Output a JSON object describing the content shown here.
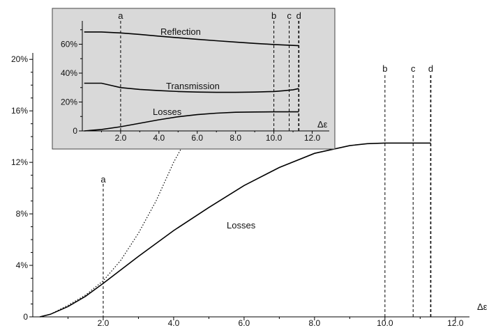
{
  "chart_data": [
    {
      "type": "line",
      "xlabel": "Δε",
      "x_ticks": [
        "2.0",
        "4.0",
        "6.0",
        "8.0",
        "10.0",
        "12.0"
      ],
      "y_ticks": [
        "0",
        "4%",
        "8%",
        "12%",
        "16%",
        "20%"
      ],
      "xlim": [
        0,
        12.4
      ],
      "ylim": [
        0,
        20.5
      ],
      "series": [
        {
          "name": "Losses",
          "x": [
            0.2,
            0.5,
            1.0,
            1.5,
            2.0,
            3.0,
            4.0,
            5.0,
            6.0,
            7.0,
            8.0,
            9.0,
            9.5,
            10.0,
            10.2,
            11.3
          ],
          "y": [
            0.0,
            0.2,
            0.8,
            1.6,
            2.6,
            4.7,
            6.7,
            8.5,
            10.2,
            11.6,
            12.7,
            13.3,
            13.45,
            13.5,
            13.5,
            13.5
          ]
        },
        {
          "x": [
            0.5,
            1.0,
            1.5,
            2.0,
            2.5,
            3.0,
            3.5,
            4.0,
            4.3
          ],
          "y": [
            0.2,
            0.9,
            1.7,
            2.8,
            4.4,
            6.5,
            9.0,
            12.0,
            13.5
          ]
        }
      ],
      "markers": [
        {
          "label": "a",
          "x": 2.0
        },
        {
          "label": "b",
          "x": 10.0
        },
        {
          "label": "c",
          "x": 10.8
        },
        {
          "label": "d",
          "x": 11.3
        }
      ]
    },
    {
      "type": "line",
      "xlabel": "Δε",
      "x_ticks": [
        "2.0",
        "4.0",
        "6.0",
        "8.0",
        "10.0",
        "12.0"
      ],
      "y_ticks": [
        "0",
        "20%",
        "40%",
        "60%"
      ],
      "xlim": [
        0,
        12.6
      ],
      "ylim": [
        0,
        80
      ],
      "series": [
        {
          "name": "Reflection",
          "x": [
            0.1,
            1.0,
            2.0,
            3.0,
            4.0,
            5.0,
            6.0,
            7.0,
            8.0,
            9.0,
            10.0,
            11.0,
            11.3
          ],
          "y": [
            68.5,
            68.5,
            67.8,
            66.8,
            65.6,
            64.5,
            63.4,
            62.4,
            61.5,
            60.6,
            59.8,
            59.2,
            59.0
          ]
        },
        {
          "name": "Transmission",
          "x": [
            0.1,
            1.0,
            1.5,
            2.0,
            3.0,
            4.0,
            5.0,
            6.0,
            7.0,
            8.0,
            9.0,
            10.0,
            10.5,
            11.0,
            11.3
          ],
          "y": [
            33.0,
            33.0,
            31.5,
            30.0,
            28.7,
            27.9,
            27.3,
            26.9,
            26.7,
            26.7,
            26.9,
            27.3,
            27.8,
            28.5,
            29.3
          ]
        },
        {
          "name": "Losses",
          "x": [
            0.1,
            1.0,
            2.0,
            3.0,
            4.0,
            5.0,
            6.0,
            7.0,
            8.0,
            9.0,
            10.0,
            11.3
          ],
          "y": [
            0.0,
            1.0,
            2.9,
            5.3,
            7.7,
            9.8,
            11.3,
            12.3,
            12.9,
            13.1,
            13.2,
            13.2
          ]
        }
      ],
      "markers": [
        {
          "label": "a",
          "x": 2.0
        },
        {
          "label": "b",
          "x": 10.0
        },
        {
          "label": "c",
          "x": 10.8
        },
        {
          "label": "d",
          "x": 11.3
        }
      ]
    }
  ]
}
